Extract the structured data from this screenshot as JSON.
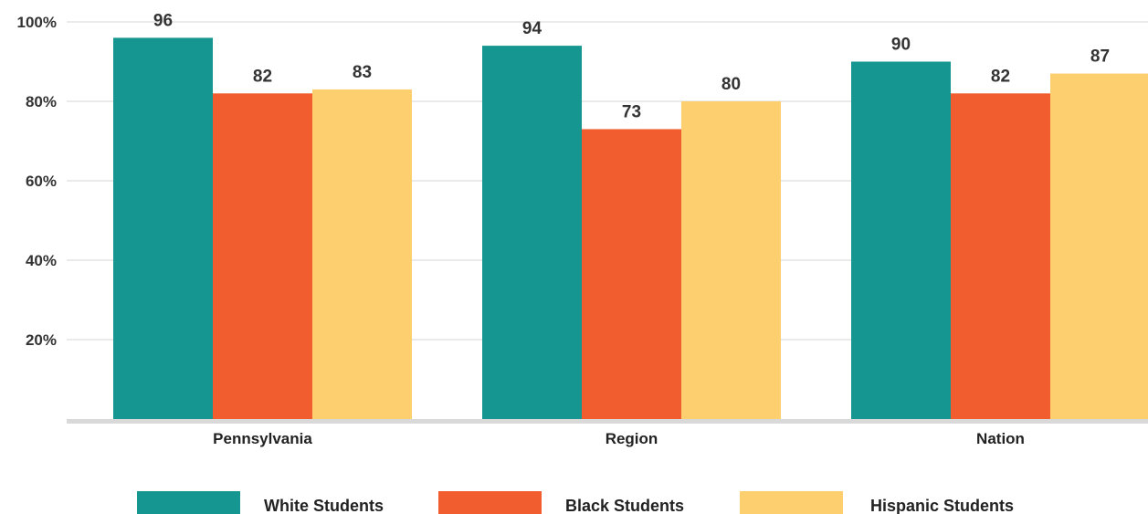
{
  "chart_data": {
    "type": "bar",
    "categories": [
      "Pennsylvania",
      "Region",
      "Nation"
    ],
    "series": [
      {
        "name": "White Students",
        "values": [
          96,
          94,
          90
        ],
        "color": "#169690"
      },
      {
        "name": "Black Students",
        "values": [
          82,
          73,
          82
        ],
        "color": "#F15D2F"
      },
      {
        "name": "Hispanic Students",
        "values": [
          83,
          80,
          87
        ],
        "color": "#FDCF6E"
      }
    ],
    "ylim": [
      0,
      100
    ],
    "yticks": [
      "20%",
      "40%",
      "60%",
      "80%",
      "100%"
    ],
    "ytick_values": [
      20,
      40,
      60,
      80,
      100
    ],
    "grid": true,
    "legend_position": "bottom",
    "title": "",
    "xlabel": "",
    "ylabel": ""
  }
}
